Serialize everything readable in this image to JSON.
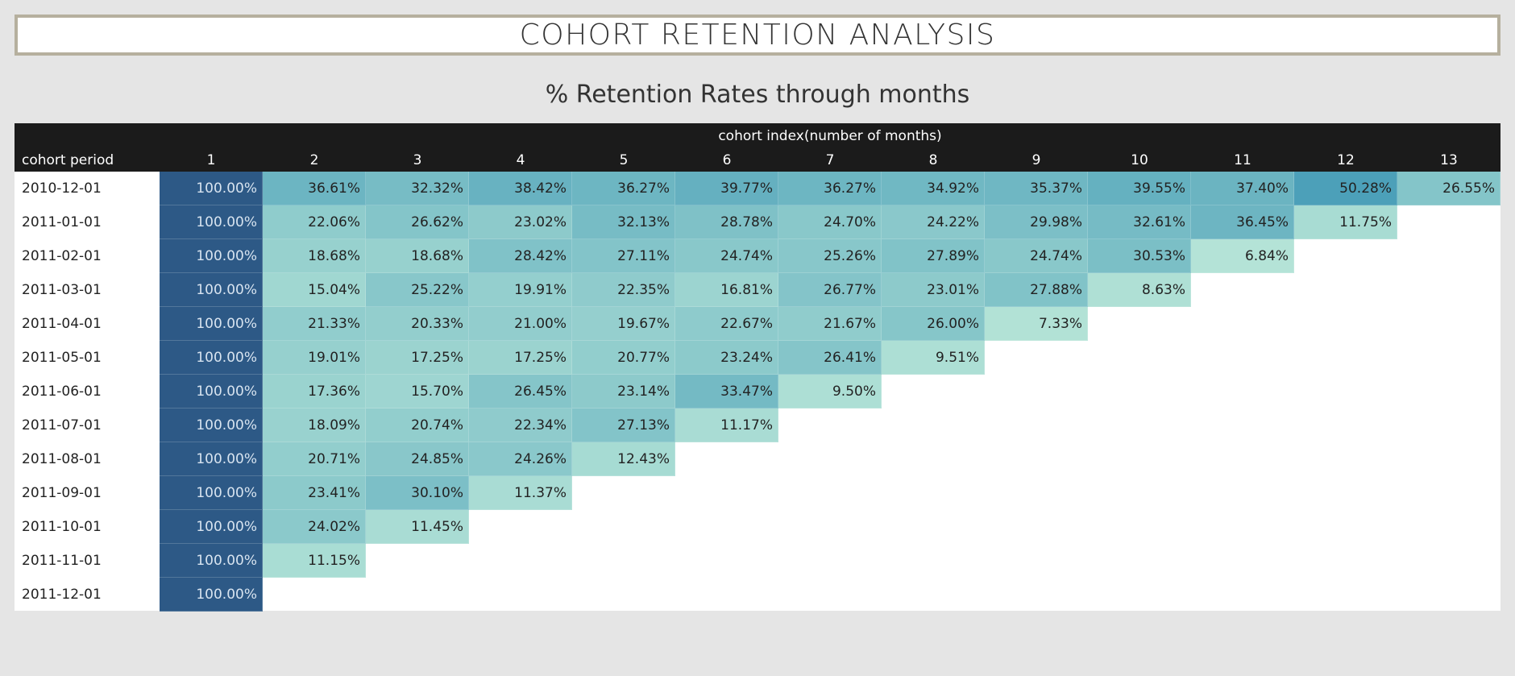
{
  "title": "COHORT RETENTION ANALYSIS",
  "subtitle": "% Retention Rates through months",
  "header": {
    "index_title": "cohort index(number of months)",
    "period_title": "cohort period"
  },
  "colors": {
    "base": "#2d5986",
    "low": "#b8e6d8",
    "high": "#4a9fb8",
    "header_bg": "#1b1b1b",
    "title_border": "#b6b09e"
  },
  "chart_data": {
    "type": "heatmap",
    "title": "% Retention Rates through months",
    "xlabel": "cohort index(number of months)",
    "ylabel": "cohort period",
    "x": [
      "1",
      "2",
      "3",
      "4",
      "5",
      "6",
      "7",
      "8",
      "9",
      "10",
      "11",
      "12",
      "13"
    ],
    "y": [
      "2010-12-01",
      "2011-01-01",
      "2011-02-01",
      "2011-03-01",
      "2011-04-01",
      "2011-05-01",
      "2011-06-01",
      "2011-07-01",
      "2011-08-01",
      "2011-09-01",
      "2011-10-01",
      "2011-11-01",
      "2011-12-01"
    ],
    "values": [
      [
        "100.00%",
        "36.61%",
        "32.32%",
        "38.42%",
        "36.27%",
        "39.77%",
        "36.27%",
        "34.92%",
        "35.37%",
        "39.55%",
        "37.40%",
        "50.28%",
        "26.55%"
      ],
      [
        "100.00%",
        "22.06%",
        "26.62%",
        "23.02%",
        "32.13%",
        "28.78%",
        "24.70%",
        "24.22%",
        "29.98%",
        "32.61%",
        "36.45%",
        "11.75%"
      ],
      [
        "100.00%",
        "18.68%",
        "18.68%",
        "28.42%",
        "27.11%",
        "24.74%",
        "25.26%",
        "27.89%",
        "24.74%",
        "30.53%",
        "6.84%"
      ],
      [
        "100.00%",
        "15.04%",
        "25.22%",
        "19.91%",
        "22.35%",
        "16.81%",
        "26.77%",
        "23.01%",
        "27.88%",
        "8.63%"
      ],
      [
        "100.00%",
        "21.33%",
        "20.33%",
        "21.00%",
        "19.67%",
        "22.67%",
        "21.67%",
        "26.00%",
        "7.33%"
      ],
      [
        "100.00%",
        "19.01%",
        "17.25%",
        "17.25%",
        "20.77%",
        "23.24%",
        "26.41%",
        "9.51%"
      ],
      [
        "100.00%",
        "17.36%",
        "15.70%",
        "26.45%",
        "23.14%",
        "33.47%",
        "9.50%"
      ],
      [
        "100.00%",
        "18.09%",
        "20.74%",
        "22.34%",
        "27.13%",
        "11.17%"
      ],
      [
        "100.00%",
        "20.71%",
        "24.85%",
        "24.26%",
        "12.43%"
      ],
      [
        "100.00%",
        "23.41%",
        "30.10%",
        "11.37%"
      ],
      [
        "100.00%",
        "24.02%",
        "11.45%"
      ],
      [
        "100.00%",
        "11.15%"
      ],
      [
        "100.00%"
      ]
    ]
  }
}
